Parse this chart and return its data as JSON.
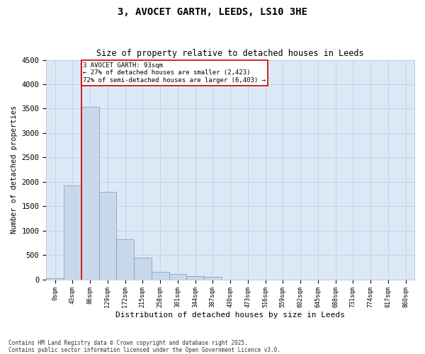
{
  "title1": "3, AVOCET GARTH, LEEDS, LS10 3HE",
  "title2": "Size of property relative to detached houses in Leeds",
  "xlabel": "Distribution of detached houses by size in Leeds",
  "ylabel": "Number of detached properties",
  "bar_labels": [
    "0sqm",
    "43sqm",
    "86sqm",
    "129sqm",
    "172sqm",
    "215sqm",
    "258sqm",
    "301sqm",
    "344sqm",
    "387sqm",
    "430sqm",
    "473sqm",
    "516sqm",
    "559sqm",
    "602sqm",
    "645sqm",
    "688sqm",
    "731sqm",
    "774sqm",
    "817sqm",
    "860sqm"
  ],
  "bar_values": [
    25,
    1930,
    3540,
    1800,
    830,
    440,
    155,
    105,
    75,
    60,
    0,
    0,
    0,
    0,
    0,
    0,
    0,
    0,
    0,
    0,
    0
  ],
  "bar_color": "#c8d8ea",
  "bar_edge_color": "#7799bb",
  "vline_color": "#cc0000",
  "annotation_text": "3 AVOCET GARTH: 93sqm\n← 27% of detached houses are smaller (2,423)\n72% of semi-detached houses are larger (6,403) →",
  "annotation_box_color": "#ffffff",
  "annotation_box_edge": "#cc0000",
  "ylim": [
    0,
    4500
  ],
  "yticks": [
    0,
    500,
    1000,
    1500,
    2000,
    2500,
    3000,
    3500,
    4000,
    4500
  ],
  "bg_color": "#dce8f5",
  "grid_color": "#b8cce0",
  "footnote1": "Contains HM Land Registry data © Crown copyright and database right 2025.",
  "footnote2": "Contains public sector information licensed under the Open Government Licence v3.0."
}
